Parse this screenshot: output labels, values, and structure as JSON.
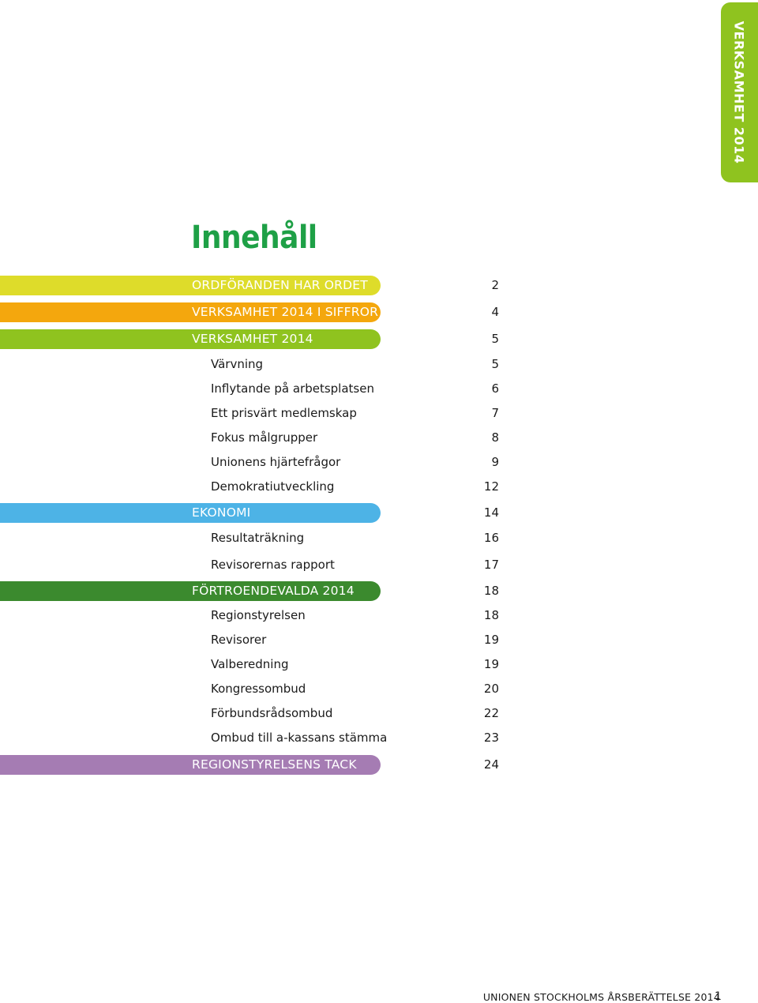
{
  "side_tab": {
    "label": "VERKSAMHET 2014",
    "color": "#8fc31f"
  },
  "title": "Innehåll",
  "toc": [
    {
      "label": "ORDFÖRANDEN HAR ORDET",
      "page": "2",
      "level": 1,
      "bar_color": "#dedc2a"
    },
    {
      "label": "VERKSAMHET 2014 I SIFFROR",
      "page": "4",
      "level": 1,
      "bar_color": "#f4a70d"
    },
    {
      "label": "VERKSAMHET 2014",
      "page": "5",
      "level": 1,
      "bar_color": "#8fc31f"
    },
    {
      "label": "Värvning",
      "page": "5",
      "level": 2
    },
    {
      "label": "Inflytande på arbetsplatsen",
      "page": "6",
      "level": 2
    },
    {
      "label": "Ett prisvärt medlemskap",
      "page": "7",
      "level": 2
    },
    {
      "label": "Fokus målgrupper",
      "page": "8",
      "level": 2
    },
    {
      "label": "Unionens hjärtefrågor",
      "page": "9",
      "level": 2
    },
    {
      "label": "Demokratiutveckling",
      "page": "12",
      "level": 2
    },
    {
      "label": "EKONOMI",
      "page": "14",
      "level": 1,
      "bar_color": "#4db3e6"
    },
    {
      "label": "Resultaträkning",
      "page": "16",
      "level": 2
    },
    {
      "label": "Revisorernas rapport",
      "page": "17",
      "level": 2
    },
    {
      "label": "FÖRTROENDEVALDA 2014",
      "page": "18",
      "level": 1,
      "bar_color": "#3b8a2e"
    },
    {
      "label": "Regionstyrelsen",
      "page": "18",
      "level": 2
    },
    {
      "label": "Revisorer",
      "page": "19",
      "level": 2
    },
    {
      "label": "Valberedning",
      "page": "19",
      "level": 2
    },
    {
      "label": "Kongressombud",
      "page": "20",
      "level": 2
    },
    {
      "label": "Förbundsrådsombud",
      "page": "22",
      "level": 2
    },
    {
      "label": "Ombud till a-kassans stämma",
      "page": "23",
      "level": 2
    },
    {
      "label": "REGIONSTYRELSENS TACK",
      "page": "24",
      "level": 1,
      "bar_color": "#a57cb3"
    }
  ],
  "footer": {
    "text": "UNIONEN STOCKHOLMS ÅRSBERÄTTELSE 2014",
    "page": "1"
  }
}
